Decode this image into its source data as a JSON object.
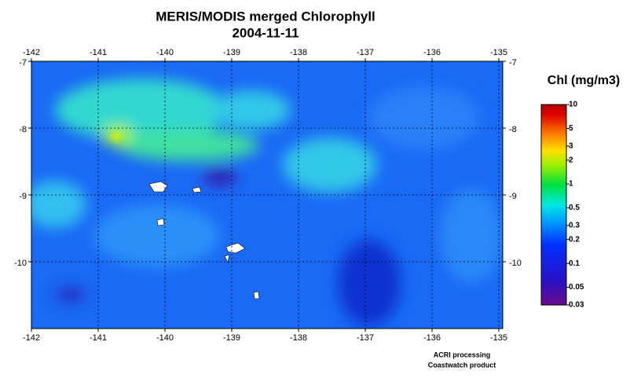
{
  "header": {
    "title": "MERIS/MODIS merged Chlorophyll",
    "date": "2004-11-11"
  },
  "map": {
    "xlim": [
      -142,
      -135
    ],
    "ylim": [
      -11,
      -7
    ],
    "xticks": [
      -142,
      -141,
      -140,
      -139,
      -138,
      -137,
      -136,
      -135
    ],
    "yticks": [
      -7,
      -8,
      -9,
      -10
    ]
  },
  "colorbar": {
    "label": "Chl (mg/m3)",
    "lim": [
      0.03,
      10
    ],
    "log": true,
    "ticks": [
      10,
      5,
      3,
      2,
      1,
      0.5,
      0.3,
      0.2,
      0.1,
      0.05,
      0.03
    ]
  },
  "credits": [
    "ACRI processing",
    "Coastwatch product"
  ]
}
